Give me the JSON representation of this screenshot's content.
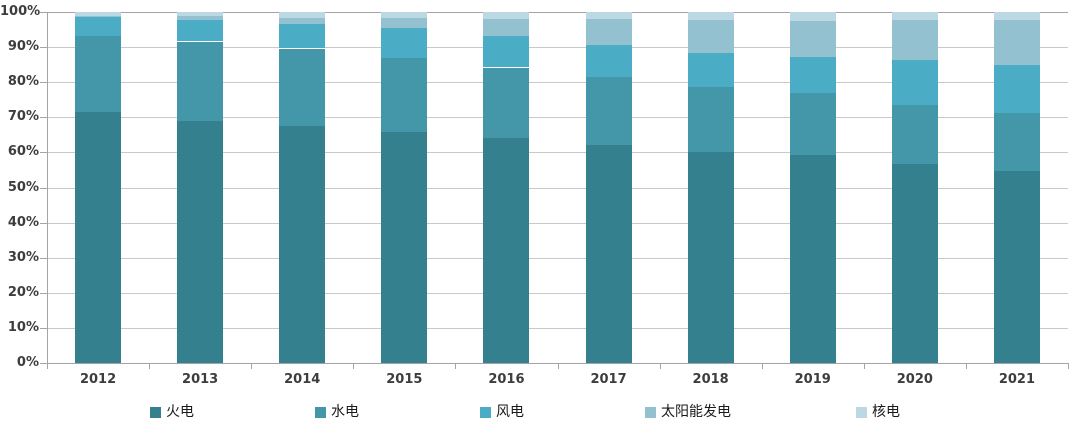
{
  "chart": {
    "background": "#ffffff",
    "grid_color": "#c9c9c9",
    "axis_color": "#a4a4a4",
    "tick_label_color": "#3d3d3d",
    "legend_text_color": "#1a1a1a"
  },
  "chart_data": {
    "type": "bar",
    "stacked": true,
    "percent_stacked": true,
    "title": "",
    "xlabel": "",
    "ylabel": "",
    "ylim": [
      0,
      100
    ],
    "grid": true,
    "legend_position": "bottom",
    "categories": [
      "2012",
      "2013",
      "2014",
      "2015",
      "2016",
      "2017",
      "2018",
      "2019",
      "2020",
      "2021"
    ],
    "ytick_labels": [
      "0%",
      "10%",
      "20%",
      "30%",
      "40%",
      "50%",
      "60%",
      "70%",
      "80%",
      "90%",
      "100%"
    ],
    "series": [
      {
        "name": "火电",
        "key": "thermal",
        "color": "#35808F",
        "values": [
          71.5,
          69.1,
          67.4,
          65.7,
          64.0,
          62.2,
          60.2,
          59.2,
          56.6,
          54.6
        ]
      },
      {
        "name": "水电",
        "key": "hydro",
        "color": "#4397A9",
        "values": [
          21.7,
          22.5,
          22.2,
          21.2,
          20.2,
          19.2,
          18.5,
          17.7,
          16.8,
          16.5
        ]
      },
      {
        "name": "风电",
        "key": "wind",
        "color": "#4AACC5",
        "values": [
          5.3,
          6.1,
          7.0,
          8.6,
          9.0,
          9.2,
          9.7,
          10.4,
          12.8,
          13.8
        ]
      },
      {
        "name": "太阳能发电",
        "key": "solar",
        "color": "#93C1CF",
        "values": [
          0.3,
          1.3,
          1.8,
          2.8,
          4.7,
          7.3,
          9.2,
          10.2,
          11.5,
          12.9
        ]
      },
      {
        "name": "核电",
        "key": "nuclear",
        "color": "#BCD8E2",
        "values": [
          1.1,
          1.2,
          1.5,
          1.7,
          2.0,
          2.0,
          2.4,
          2.4,
          2.3,
          2.2
        ]
      }
    ]
  }
}
